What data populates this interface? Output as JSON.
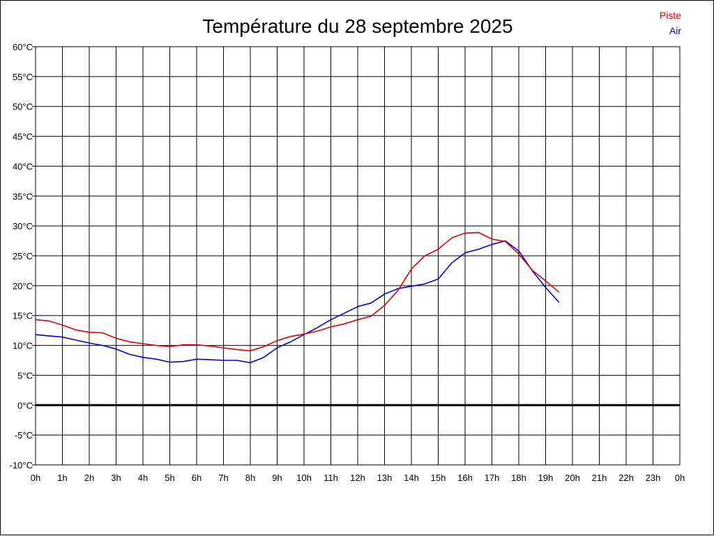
{
  "chart_data": {
    "type": "line",
    "title": "Température du 28 septembre 2025",
    "xlabel": "",
    "ylabel": "",
    "x_unit_suffix": "h",
    "y_unit_suffix": "°C",
    "xlim": [
      0,
      24
    ],
    "ylim": [
      -10,
      60
    ],
    "x_ticks": [
      0,
      1,
      2,
      3,
      4,
      5,
      6,
      7,
      8,
      9,
      10,
      11,
      12,
      13,
      14,
      15,
      16,
      17,
      18,
      19,
      20,
      21,
      22,
      23,
      24
    ],
    "x_tick_labels": [
      "0h",
      "1h",
      "2h",
      "3h",
      "4h",
      "5h",
      "6h",
      "7h",
      "8h",
      "9h",
      "10h",
      "11h",
      "12h",
      "13h",
      "14h",
      "15h",
      "16h",
      "17h",
      "18h",
      "19h",
      "20h",
      "21h",
      "22h",
      "23h",
      "0h"
    ],
    "y_ticks": [
      -10,
      -5,
      0,
      5,
      10,
      15,
      20,
      25,
      30,
      35,
      40,
      45,
      50,
      55,
      60
    ],
    "y_tick_labels": [
      "-10°C",
      "-5°C",
      "0°C",
      "5°C",
      "10°C",
      "15°C",
      "20°C",
      "25°C",
      "30°C",
      "35°C",
      "40°C",
      "45°C",
      "50°C",
      "55°C",
      "60°C"
    ],
    "grid": true,
    "zero_line": true,
    "legend_position": "top-right",
    "series": [
      {
        "name": "Piste",
        "color": "#dd0000",
        "x": [
          0,
          0.5,
          1,
          1.5,
          2,
          2.5,
          3,
          3.5,
          4,
          4.5,
          5,
          5.5,
          6,
          6.5,
          7,
          7.5,
          8,
          8.5,
          9,
          9.5,
          10,
          10.5,
          11,
          11.5,
          12,
          12.5,
          13,
          13.5,
          14,
          14.5,
          15,
          15.5,
          16,
          16.5,
          17,
          17.5,
          18,
          18.5,
          19,
          19.5
        ],
        "y": [
          14.3,
          14.1,
          13.4,
          12.6,
          12.2,
          12.1,
          11.2,
          10.6,
          10.3,
          10.0,
          9.8,
          10.1,
          10.1,
          9.9,
          9.6,
          9.3,
          9.1,
          9.8,
          10.8,
          11.5,
          11.9,
          12.4,
          13.1,
          13.6,
          14.3,
          14.9,
          16.7,
          19.2,
          22.8,
          25.0,
          26.1,
          28.0,
          28.8,
          28.9,
          27.8,
          27.4,
          25.3,
          22.6,
          20.8,
          18.9
        ]
      },
      {
        "name": "Air",
        "color": "#0000cc",
        "x": [
          0,
          0.5,
          1,
          1.5,
          2,
          2.5,
          3,
          3.5,
          4,
          4.5,
          5,
          5.5,
          6,
          6.5,
          7,
          7.5,
          8,
          8.5,
          9,
          9.5,
          10,
          10.5,
          11,
          11.5,
          12,
          12.5,
          13,
          13.5,
          14,
          14.5,
          15,
          15.5,
          16,
          16.5,
          17,
          17.5,
          18,
          18.5,
          19,
          19.5
        ],
        "y": [
          11.8,
          11.6,
          11.4,
          10.9,
          10.4,
          10.0,
          9.4,
          8.5,
          8.0,
          7.7,
          7.2,
          7.3,
          7.7,
          7.6,
          7.5,
          7.5,
          7.1,
          8.0,
          9.6,
          10.6,
          11.8,
          13.0,
          14.3,
          15.4,
          16.5,
          17.1,
          18.6,
          19.5,
          19.9,
          20.3,
          21.1,
          23.8,
          25.5,
          26.1,
          26.9,
          27.5,
          25.8,
          22.5,
          19.7,
          17.2
        ]
      }
    ]
  }
}
